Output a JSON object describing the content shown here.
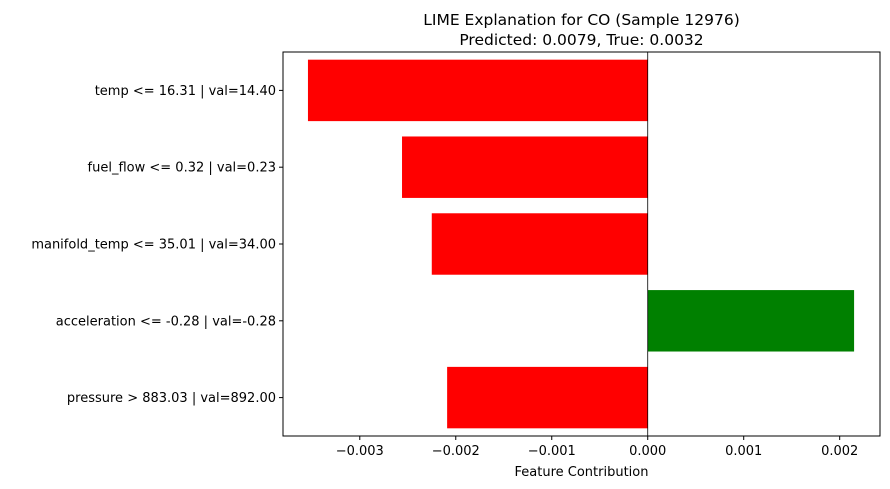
{
  "chart_data": {
    "type": "bar",
    "orientation": "horizontal",
    "title": "LIME Explanation for CO (Sample 12976)",
    "subtitle": "Predicted: 0.0079, True: 0.0032",
    "xlabel": "Feature Contribution",
    "ylabel": "",
    "categories": [
      "temp <= 16.31 | val=14.40",
      "fuel_flow <= 0.32 | val=0.23",
      "manifold_temp <= 35.01 | val=34.00",
      "acceleration <= -0.28 | val=-0.28",
      "pressure > 883.03 | val=892.00"
    ],
    "values": [
      -0.00354,
      -0.00256,
      -0.00225,
      0.00215,
      -0.00209
    ],
    "colors": [
      "#ff0000",
      "#ff0000",
      "#ff0000",
      "#008000",
      "#ff0000"
    ],
    "xlim": [
      -0.0038,
      0.00242
    ],
    "x_ticks": [
      -0.003,
      -0.002,
      -0.001,
      0.0,
      0.001,
      0.002
    ],
    "x_tick_labels": [
      "−0.003",
      "−0.002",
      "−0.001",
      "0.000",
      "0.001",
      "0.002"
    ],
    "zero_line": true,
    "grid": false
  }
}
